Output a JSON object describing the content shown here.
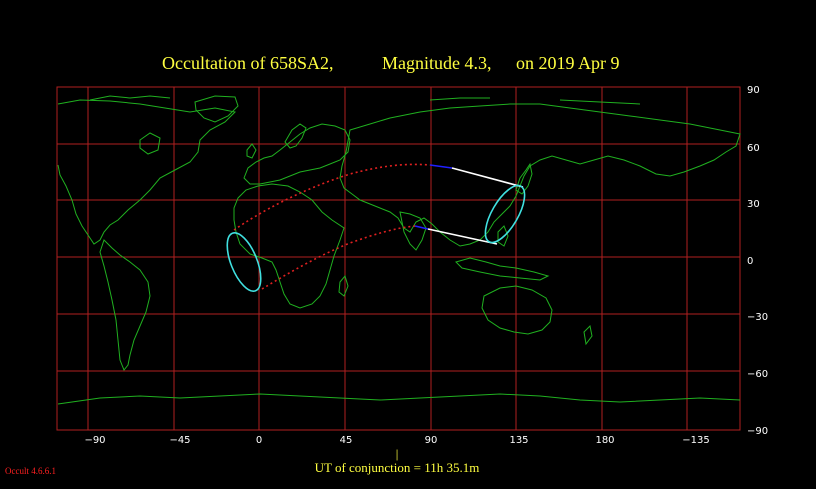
{
  "title": {
    "object": "Occultation  of  658SA2,",
    "magnitude": "Magnitude 4.3,",
    "date": "on  2019 Apr  9"
  },
  "axes": {
    "x_ticks": [
      "−90",
      "−45",
      "0",
      "45",
      "90",
      "135",
      "180",
      "−135"
    ],
    "y_ticks": [
      "90",
      "60",
      "30",
      "0",
      "−30",
      "−60",
      "−90"
    ]
  },
  "footer": {
    "conjunction_marker": "|",
    "conjunction_text": "UT of conjunction = 11h 35.1m",
    "version": "Occult 4.6.6.1"
  },
  "colors": {
    "background": "#000000",
    "grid": "#b02020",
    "coastline": "#20b020",
    "title": "#ffff40",
    "path_visible": "#ffffff",
    "path_dotted": "#e02020",
    "path_blue": "#2020ff",
    "ellipse": "#40e0e0"
  }
}
